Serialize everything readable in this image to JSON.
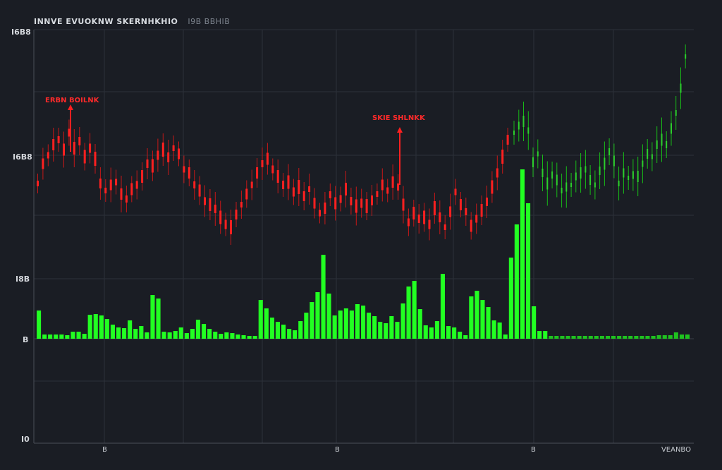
{
  "header": {
    "title": "INNVE EVUOKNW SKERNHKHIO",
    "subtitle": "I9B BBHIB"
  },
  "y_labels": [
    "I6B8",
    "I6B8",
    "I8B",
    "B",
    "I0"
  ],
  "x_labels": [
    "B",
    "B",
    "B"
  ],
  "corner_label": "VEANBO",
  "annotations": [
    "ERBN BOILNK",
    "SKIE SHLNKK"
  ],
  "colors": {
    "background": "#1a1d24",
    "grid": "#2c313a",
    "axis": "#4a4f58",
    "red": "#ff2020",
    "green": "#22ff22",
    "green_dim": "#1fc21f"
  },
  "chart_data": {
    "type": "bar",
    "categories_count": 115,
    "series": [
      {
        "price_red": [
          260,
          232,
          220,
          205,
          198,
          212,
          188,
          210,
          200,
          222,
          210,
          225,
          260,
          270,
          262,
          258,
          275,
          282,
          268,
          262,
          250,
          232,
          235,
          220,
          212,
          223,
          210,
          218,
          240,
          245,
          262,
          270,
          285,
          290,
          296,
          308,
          318,
          322,
          304,
          290,
          275,
          262,
          245,
          232,
          225,
          240,
          250,
          262,
          258,
          272,
          265,
          278,
          268,
          288,
          302,
          295,
          276,
          288,
          282,
          268,
          285,
          292,
          288,
          292,
          284,
          275,
          262,
          270,
          258,
          265,
          290,
          315,
          302,
          310,
          308,
          318,
          295,
          308,
          322,
          300,
          272,
          290,
          300,
          320,
          310,
          298,
          286,
          265,
          245,
          222,
          198
        ],
        "price_green": [
          188,
          178,
          172,
          185,
          230,
          218,
          245,
          260,
          248,
          255,
          270,
          265,
          262,
          250,
          245,
          240,
          255,
          262,
          242,
          232,
          215,
          228,
          260,
          245,
          252,
          248,
          250,
          232,
          218,
          222,
          205,
          198,
          205,
          182,
          160,
          125,
          80
        ],
        "volume": [
          40,
          6,
          6,
          6,
          6,
          5,
          10,
          10,
          7,
          34,
          35,
          33,
          28,
          20,
          16,
          15,
          26,
          14,
          18,
          9,
          62,
          57,
          10,
          9,
          11,
          16,
          8,
          14,
          27,
          21,
          14,
          10,
          7,
          9,
          8,
          6,
          5,
          4,
          4,
          55,
          43,
          30,
          24,
          20,
          14,
          12,
          25,
          37,
          52,
          66,
          119,
          64,
          33,
          40,
          43,
          40,
          49,
          47,
          37,
          32,
          24,
          22,
          32,
          24,
          50,
          74,
          82,
          42,
          19,
          16,
          25,
          92,
          18,
          16,
          10,
          5,
          60,
          68,
          55,
          45,
          26,
          23,
          6,
          115,
          162,
          240,
          192,
          46,
          11,
          11,
          4,
          4,
          4,
          4,
          4,
          4,
          4,
          4,
          4,
          4,
          4,
          4,
          4,
          4,
          4,
          4,
          4,
          4,
          4,
          5,
          5,
          5,
          9,
          6,
          6
        ]
      }
    ],
    "grid": true
  }
}
